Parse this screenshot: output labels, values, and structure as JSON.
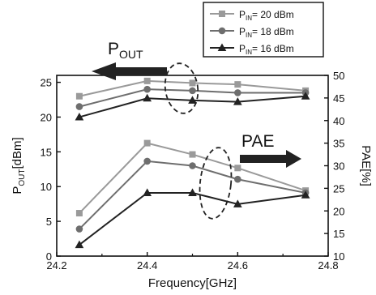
{
  "chart_data": {
    "type": "line",
    "x_label": "Frequency",
    "x_label_unit": "[GHz]",
    "x_ticks": [
      "24.2",
      "24.4",
      "24.6",
      "24.8"
    ],
    "xlim": [
      24.2,
      24.8
    ],
    "left_axis": {
      "label_main": "P",
      "label_sub": "OUT",
      "label_unit": "[dBm]",
      "ylim": [
        0,
        26
      ],
      "ticks": [
        "0",
        "5",
        "10",
        "15",
        "20",
        "25"
      ]
    },
    "right_axis": {
      "label": "PAE[%]",
      "ylim": [
        10,
        50
      ],
      "ticks": [
        "10",
        "15",
        "20",
        "25",
        "30",
        "35",
        "40",
        "45",
        "50"
      ]
    },
    "x": [
      24.25,
      24.4,
      24.5,
      24.6,
      24.75
    ],
    "series": [
      {
        "name": "P_IN= 20 dBm",
        "legend_main": "P",
        "legend_sub": "IN",
        "legend_rest": "= 20 dBm",
        "color": "#9a9a9a",
        "marker": "square",
        "pout": [
          23.0,
          25.2,
          24.9,
          24.7,
          23.8
        ],
        "pae": [
          19.5,
          35.0,
          32.5,
          29.5,
          24.5
        ]
      },
      {
        "name": "P_IN= 18 dBm",
        "legend_main": "P",
        "legend_sub": "IN",
        "legend_rest": "= 18 dBm",
        "color": "#6e6e6e",
        "marker": "circle",
        "pout": [
          21.5,
          24.0,
          23.8,
          23.5,
          23.5
        ],
        "pae": [
          16.0,
          31.0,
          30.0,
          27.0,
          24.0
        ]
      },
      {
        "name": "P_IN= 16 dBm",
        "legend_main": "P",
        "legend_sub": "IN",
        "legend_rest": "= 16 dBm",
        "color": "#222222",
        "marker": "triangle",
        "pout": [
          20.0,
          22.7,
          22.4,
          22.2,
          23.0
        ],
        "pae": [
          12.5,
          24.0,
          24.0,
          21.5,
          23.5
        ]
      }
    ],
    "annotations": {
      "pout_main": "P",
      "pout_sub": "OUT",
      "pae": "PAE"
    },
    "grid": false,
    "legend_position": "top-right"
  }
}
